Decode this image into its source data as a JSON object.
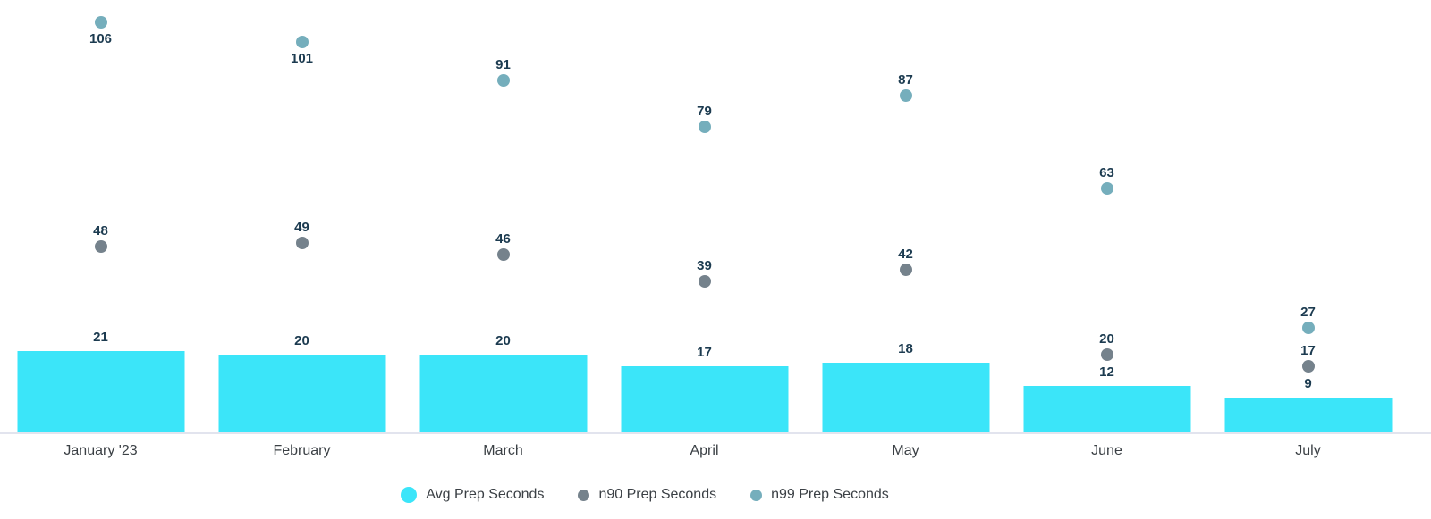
{
  "chart_data": {
    "type": "combo",
    "categories": [
      "January '23",
      "February",
      "March",
      "April",
      "May",
      "June",
      "July"
    ],
    "series": [
      {
        "name": "Avg Prep Seconds",
        "type": "bar",
        "color": "#3BE5F9",
        "values": [
          21,
          20,
          20,
          17,
          18,
          12,
          9
        ]
      },
      {
        "name": "n90 Prep Seconds",
        "type": "scatter",
        "color": "#75828C",
        "values": [
          48,
          49,
          46,
          39,
          42,
          20,
          17
        ]
      },
      {
        "name": "n99 Prep Seconds",
        "type": "scatter",
        "color": "#75AEBC",
        "values": [
          106,
          101,
          91,
          79,
          87,
          63,
          27
        ]
      }
    ],
    "ylim": [
      0,
      112
    ],
    "xlabel": "",
    "ylabel": "",
    "grid": false,
    "y_axis_visible": false,
    "legend_position": "bottom",
    "value_labels": true,
    "colors": {
      "value_label": "#1C3B50",
      "axis_text": "#3B4045",
      "axis_line": "#E2E4EE",
      "background": "#FFFFFF"
    }
  }
}
